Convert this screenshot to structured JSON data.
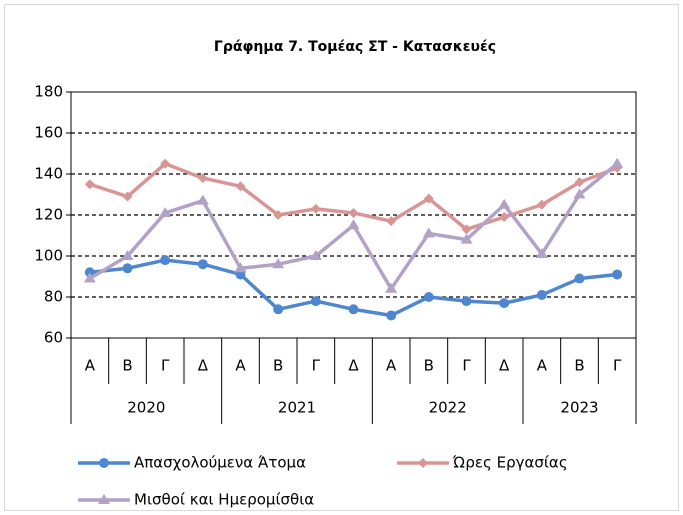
{
  "chart_data": {
    "type": "line",
    "title": "Γράφημα 7. Τομέας ΣΤ - Κατασκευές",
    "category_groups": [
      {
        "label": "2020",
        "categories": [
          "Α",
          "Β",
          "Γ",
          "Δ"
        ]
      },
      {
        "label": "2021",
        "categories": [
          "Α",
          "Β",
          "Γ",
          "Δ"
        ]
      },
      {
        "label": "2022",
        "categories": [
          "Α",
          "Β",
          "Γ",
          "Δ"
        ]
      },
      {
        "label": "2023",
        "categories": [
          "Α",
          "Β",
          "Γ"
        ]
      }
    ],
    "series": [
      {
        "name": "Απασχολούμενα Άτομα",
        "color": "#4f86d0",
        "marker": "circle",
        "values": [
          92,
          94,
          98,
          96,
          91,
          74,
          78,
          74,
          71,
          80,
          78,
          77,
          81,
          89,
          91
        ]
      },
      {
        "name": "Ώρες Εργασίας",
        "color": "#d99594",
        "marker": "diamond",
        "values": [
          135,
          129,
          145,
          138,
          134,
          120,
          123,
          121,
          117,
          128,
          113,
          119,
          125,
          136,
          143
        ]
      },
      {
        "name": "Μισθοί και Ημερομίσθια",
        "color": "#b3a2c7",
        "marker": "triangle",
        "values": [
          89,
          100,
          121,
          127,
          94,
          96,
          100,
          115,
          84,
          111,
          108,
          125,
          101,
          130,
          145
        ]
      }
    ],
    "ylim": [
      60,
      180
    ],
    "yticks": [
      60,
      80,
      100,
      120,
      140,
      160,
      180
    ],
    "grid": true,
    "legend": "bottom"
  }
}
